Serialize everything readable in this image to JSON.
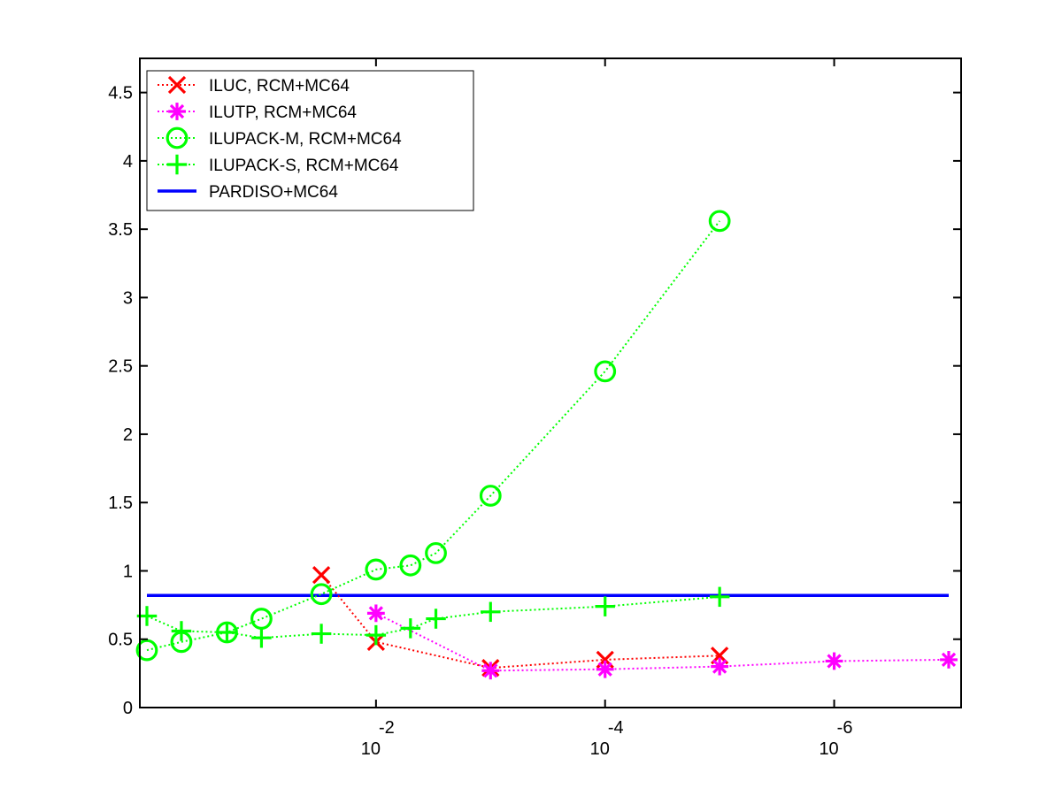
{
  "chart_data": {
    "type": "line",
    "x_scale": "log",
    "x_reversed": true,
    "xlim": [
      1,
      1e-07
    ],
    "ylim": [
      0,
      4.75
    ],
    "grid": false,
    "legend_position": "top-left",
    "x_ticks": [
      {
        "value": 0.01,
        "base": "10",
        "exponent": "-2"
      },
      {
        "value": 0.0001,
        "base": "10",
        "exponent": "-4"
      },
      {
        "value": 1e-06,
        "base": "10",
        "exponent": "-6"
      }
    ],
    "y_ticks": [
      {
        "value": 0,
        "label": "0"
      },
      {
        "value": 0.5,
        "label": "0.5"
      },
      {
        "value": 1,
        "label": "1"
      },
      {
        "value": 1.5,
        "label": "1.5"
      },
      {
        "value": 2,
        "label": "2"
      },
      {
        "value": 2.5,
        "label": "2.5"
      },
      {
        "value": 3,
        "label": "3"
      },
      {
        "value": 3.5,
        "label": "3.5"
      },
      {
        "value": 4,
        "label": "4"
      },
      {
        "value": 4.5,
        "label": "4.5"
      }
    ],
    "series": [
      {
        "name": "ILUC, RCM+MC64",
        "color": "#ff0000",
        "marker": "x",
        "line": "dotted",
        "points": [
          [
            0.03,
            0.97
          ],
          [
            0.01,
            0.48
          ],
          [
            0.001,
            0.29
          ],
          [
            0.0001,
            0.35
          ],
          [
            1e-05,
            0.38
          ]
        ]
      },
      {
        "name": "ILUTP, RCM+MC64",
        "color": "#ff00ff",
        "marker": "asterisk",
        "line": "dotted",
        "points": [
          [
            0.01,
            0.69
          ],
          [
            0.001,
            0.27
          ],
          [
            0.0001,
            0.28
          ],
          [
            1e-05,
            0.3
          ],
          [
            1e-06,
            0.34
          ],
          [
            1e-07,
            0.35
          ]
        ]
      },
      {
        "name": "ILUPACK-M, RCM+MC64",
        "color": "#00ff00",
        "marker": "circle",
        "line": "dotted",
        "points": [
          [
            1,
            0.42
          ],
          [
            0.5,
            0.48
          ],
          [
            0.2,
            0.55
          ],
          [
            0.1,
            0.65
          ],
          [
            0.03,
            0.83
          ],
          [
            0.01,
            1.01
          ],
          [
            0.005,
            1.04
          ],
          [
            0.003,
            1.13
          ],
          [
            0.001,
            1.55
          ],
          [
            0.0001,
            2.46
          ],
          [
            1e-05,
            3.56
          ]
        ]
      },
      {
        "name": "ILUPACK-S, RCM+MC64",
        "color": "#00ff00",
        "marker": "plus",
        "line": "dotted",
        "points": [
          [
            1,
            0.67
          ],
          [
            0.5,
            0.56
          ],
          [
            0.2,
            0.55
          ],
          [
            0.1,
            0.51
          ],
          [
            0.03,
            0.54
          ],
          [
            0.01,
            0.53
          ],
          [
            0.005,
            0.58
          ],
          [
            0.003,
            0.65
          ],
          [
            0.001,
            0.7
          ],
          [
            0.0001,
            0.74
          ],
          [
            1e-05,
            0.81
          ]
        ]
      },
      {
        "name": "PARDISO+MC64",
        "color": "#0000ff",
        "marker": "none",
        "line": "solid",
        "points": [
          [
            1,
            0.82
          ],
          [
            1e-07,
            0.82
          ]
        ]
      }
    ]
  }
}
